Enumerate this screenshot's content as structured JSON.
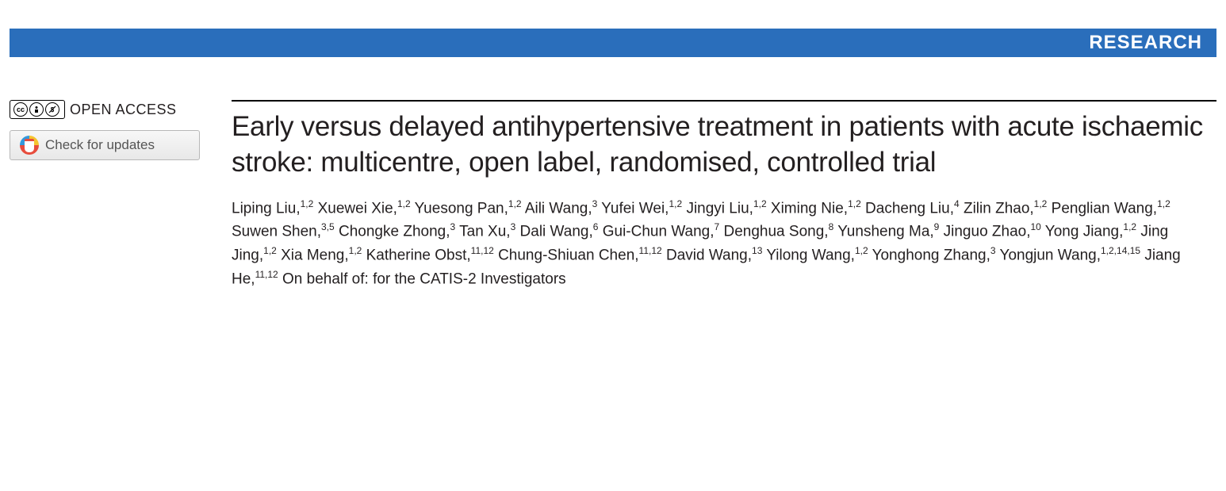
{
  "header": {
    "label": "RESEARCH",
    "bar_color": "#2a6ebb",
    "text_color": "#ffffff"
  },
  "left_sidebar": {
    "open_access_text": "OPEN ACCESS",
    "cc_symbols": [
      "CC",
      "BY",
      "NC"
    ],
    "check_updates_label": "Check for updates"
  },
  "article": {
    "title": "Early versus delayed antihypertensive treatment in patients with acute ischaemic stroke: multicentre, open label, randomised, controlled trial",
    "authors": [
      {
        "name": "Liping Liu",
        "affil": "1,2"
      },
      {
        "name": "Xuewei Xie",
        "affil": "1,2"
      },
      {
        "name": "Yuesong Pan",
        "affil": "1,2"
      },
      {
        "name": "Aili Wang",
        "affil": "3"
      },
      {
        "name": "Yufei Wei",
        "affil": "1,2"
      },
      {
        "name": "Jingyi Liu",
        "affil": "1,2"
      },
      {
        "name": "Ximing Nie",
        "affil": "1,2"
      },
      {
        "name": "Dacheng Liu",
        "affil": "4"
      },
      {
        "name": "Zilin Zhao",
        "affil": "1,2"
      },
      {
        "name": "Penglian Wang",
        "affil": "1,2"
      },
      {
        "name": "Suwen Shen",
        "affil": "3,5"
      },
      {
        "name": "Chongke Zhong",
        "affil": "3"
      },
      {
        "name": "Tan Xu",
        "affil": "3"
      },
      {
        "name": "Dali Wang",
        "affil": "6"
      },
      {
        "name": "Gui-Chun Wang",
        "affil": "7"
      },
      {
        "name": "Denghua Song",
        "affil": "8"
      },
      {
        "name": "Yunsheng Ma",
        "affil": "9"
      },
      {
        "name": "Jinguo Zhao",
        "affil": "10"
      },
      {
        "name": "Yong Jiang",
        "affil": "1,2"
      },
      {
        "name": "Jing Jing",
        "affil": "1,2"
      },
      {
        "name": "Xia Meng",
        "affil": "1,2"
      },
      {
        "name": "Katherine Obst",
        "affil": "11,12"
      },
      {
        "name": "Chung-Shiuan Chen",
        "affil": "11,12"
      },
      {
        "name": "David Wang",
        "affil": "13"
      },
      {
        "name": "Yilong Wang",
        "affil": "1,2"
      },
      {
        "name": "Yonghong Zhang",
        "affil": "3"
      },
      {
        "name": "Yongjun Wang",
        "affil": "1,2,14,15"
      },
      {
        "name": "Jiang He",
        "affil": "11,12"
      }
    ],
    "behalf_text": "On behalf of: for the CATIS-2 Investigators"
  },
  "styling": {
    "title_fontsize": 35,
    "author_fontsize": 19,
    "title_color": "#231f20",
    "background_color": "#ffffff",
    "rule_color": "#000000"
  }
}
